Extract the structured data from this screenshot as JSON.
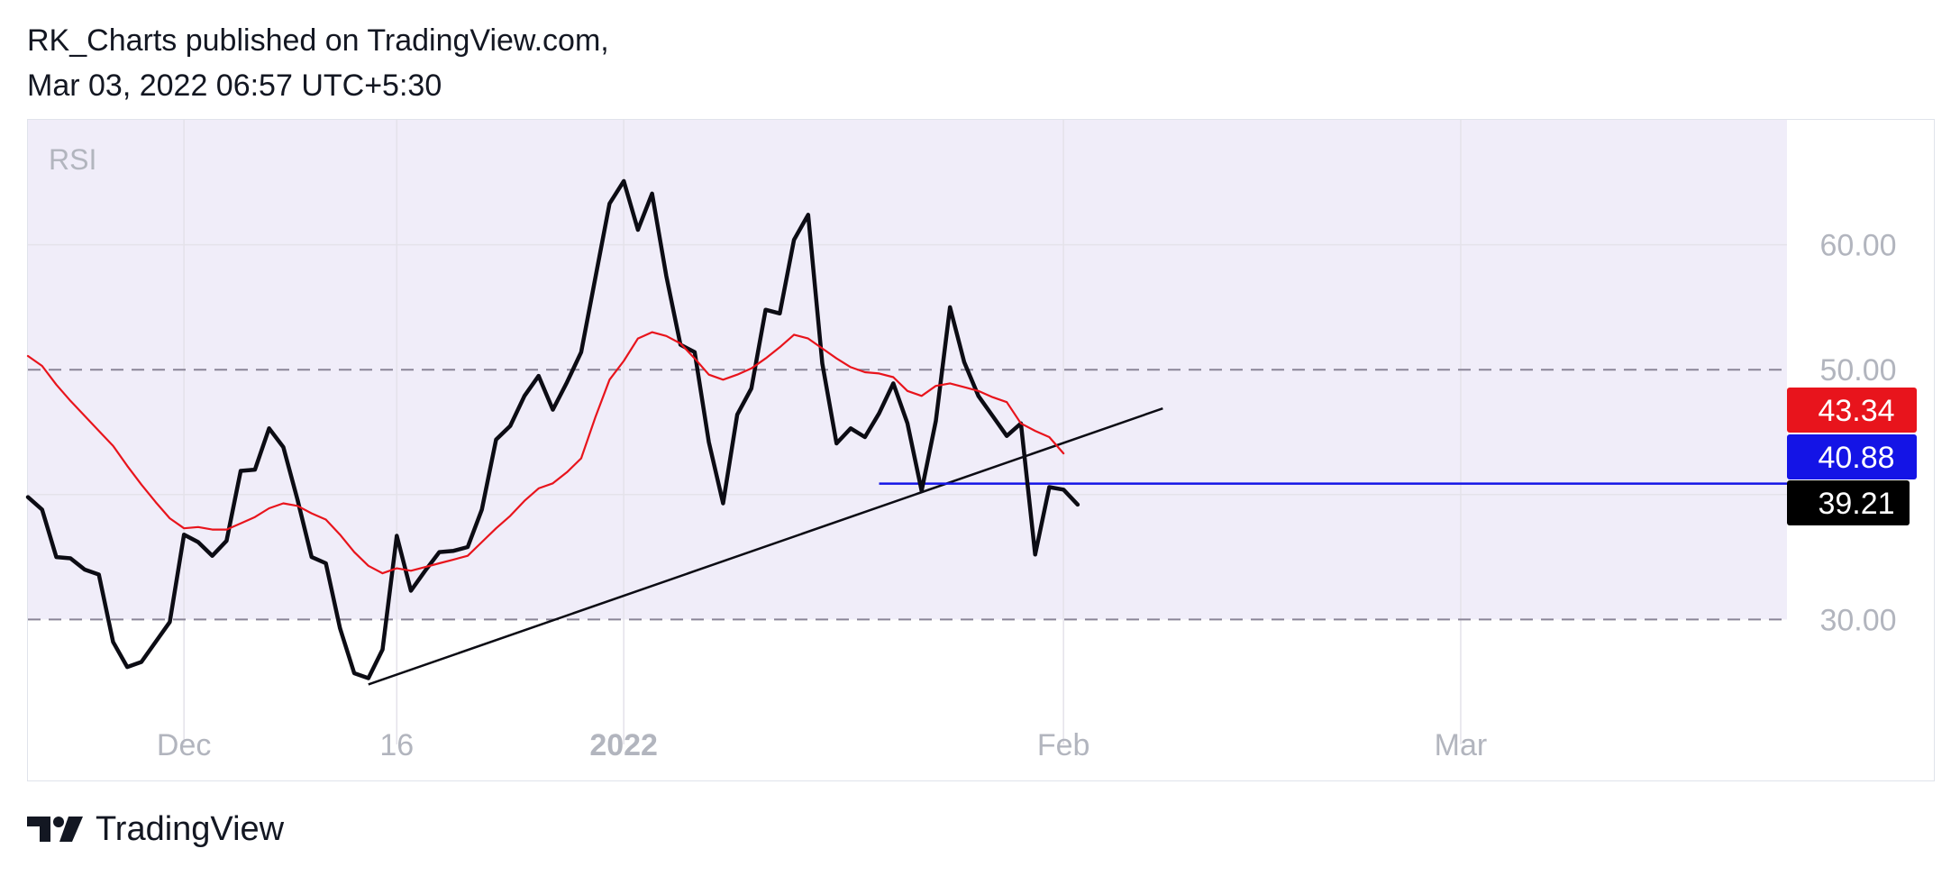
{
  "header": {
    "line1": "RK_Charts published on TradingView.com,",
    "line2": "Mar 03, 2022 06:57 UTC+5:30"
  },
  "footer": {
    "brand": "TradingView",
    "logo_icon": "tradingview-logo-icon"
  },
  "colors": {
    "band_fill": "#f0edf9",
    "rsi": "#0c0c14",
    "rsi_ma": "#e8141c",
    "trendline": "#0c0c14",
    "support_line": "#1414e6",
    "dashed": "#8a8597",
    "tick_text": "#b2b5be",
    "grid": "#e4e2ea"
  },
  "chart_data": {
    "type": "line",
    "title": "RSI",
    "xlabel": "",
    "ylabel": "",
    "x_ticks": [
      "Dec",
      "16",
      "2022",
      "Feb",
      "Mar"
    ],
    "x_tick_dates": [
      "2021-12-01",
      "2021-12-16",
      "2022-01-01",
      "2022-02-01",
      "2022-03-01"
    ],
    "y_ticks": [
      "60.00",
      "50.00",
      "30.00"
    ],
    "ylim": [
      20,
      70
    ],
    "xlim": [
      "2021-11-20",
      "2022-03-24"
    ],
    "band": [
      30,
      50
    ],
    "dashed_levels": [
      50,
      30
    ],
    "grid": true,
    "series": [
      {
        "role": "rsi",
        "last_value": "39.21",
        "points": [
          [
            "2021-11-20",
            39.8
          ],
          [
            "2021-11-21",
            38.8
          ],
          [
            "2021-11-22",
            35.0
          ],
          [
            "2021-11-23",
            34.9
          ],
          [
            "2021-11-24",
            34.0
          ],
          [
            "2021-11-25",
            33.6
          ],
          [
            "2021-11-26",
            28.2
          ],
          [
            "2021-11-27",
            26.2
          ],
          [
            "2021-11-28",
            26.6
          ],
          [
            "2021-11-30",
            29.8
          ],
          [
            "2021-12-01",
            36.8
          ],
          [
            "2021-12-02",
            36.2
          ],
          [
            "2021-12-03",
            35.1
          ],
          [
            "2021-12-04",
            36.3
          ],
          [
            "2021-12-05",
            41.9
          ],
          [
            "2021-12-06",
            42.0
          ],
          [
            "2021-12-07",
            45.3
          ],
          [
            "2021-12-08",
            43.8
          ],
          [
            "2021-12-09",
            39.6
          ],
          [
            "2021-12-10",
            35.0
          ],
          [
            "2021-12-11",
            34.5
          ],
          [
            "2021-12-12",
            29.3
          ],
          [
            "2021-12-13",
            25.7
          ],
          [
            "2021-12-14",
            25.3
          ],
          [
            "2021-12-15",
            27.6
          ],
          [
            "2021-12-16",
            36.7
          ],
          [
            "2021-12-17",
            32.3
          ],
          [
            "2021-12-18",
            33.9
          ],
          [
            "2021-12-19",
            35.4
          ],
          [
            "2021-12-20",
            35.5
          ],
          [
            "2021-12-21",
            35.8
          ],
          [
            "2021-12-22",
            38.8
          ],
          [
            "2021-12-23",
            44.4
          ],
          [
            "2021-12-24",
            45.5
          ],
          [
            "2021-12-25",
            47.9
          ],
          [
            "2021-12-26",
            49.5
          ],
          [
            "2021-12-27",
            46.8
          ],
          [
            "2021-12-28",
            49.0
          ],
          [
            "2021-12-29",
            51.4
          ],
          [
            "2021-12-31",
            63.3
          ],
          [
            "2022-01-01",
            65.1
          ],
          [
            "2022-01-02",
            61.2
          ],
          [
            "2022-01-03",
            64.1
          ],
          [
            "2022-01-04",
            57.5
          ],
          [
            "2022-01-05",
            52.0
          ],
          [
            "2022-01-06",
            51.4
          ],
          [
            "2022-01-07",
            44.2
          ],
          [
            "2022-01-08",
            39.3
          ],
          [
            "2022-01-09",
            46.4
          ],
          [
            "2022-01-10",
            48.5
          ],
          [
            "2022-01-11",
            54.8
          ],
          [
            "2022-01-12",
            54.5
          ],
          [
            "2022-01-13",
            60.4
          ],
          [
            "2022-01-14",
            62.4
          ],
          [
            "2022-01-15",
            50.5
          ],
          [
            "2022-01-16",
            44.1
          ],
          [
            "2022-01-17",
            45.3
          ],
          [
            "2022-01-18",
            44.6
          ],
          [
            "2022-01-19",
            46.5
          ],
          [
            "2022-01-20",
            48.9
          ],
          [
            "2022-01-21",
            45.7
          ],
          [
            "2022-01-22",
            40.3
          ],
          [
            "2022-01-23",
            45.9
          ],
          [
            "2022-01-24",
            55.0
          ],
          [
            "2022-01-25",
            50.6
          ],
          [
            "2022-01-26",
            47.9
          ],
          [
            "2022-01-27",
            46.3
          ],
          [
            "2022-01-28",
            44.7
          ],
          [
            "2022-01-29",
            45.7
          ],
          [
            "2022-01-30",
            35.2
          ],
          [
            "2022-01-31",
            40.6
          ],
          [
            "2022-02-01",
            40.4
          ],
          [
            "2022-02-02",
            39.2
          ]
        ]
      },
      {
        "role": "rsi_ma",
        "last_value": "43.34",
        "points": [
          [
            "2021-11-20",
            51.1
          ],
          [
            "2021-11-21",
            50.3
          ],
          [
            "2021-11-22",
            48.8
          ],
          [
            "2021-11-23",
            47.5
          ],
          [
            "2021-11-24",
            46.3
          ],
          [
            "2021-11-25",
            45.1
          ],
          [
            "2021-11-26",
            43.9
          ],
          [
            "2021-11-27",
            42.3
          ],
          [
            "2021-11-28",
            40.8
          ],
          [
            "2021-11-29",
            39.4
          ],
          [
            "2021-11-30",
            38.1
          ],
          [
            "2021-12-01",
            37.3
          ],
          [
            "2021-12-02",
            37.4
          ],
          [
            "2021-12-03",
            37.2
          ],
          [
            "2021-12-04",
            37.2
          ],
          [
            "2021-12-05",
            37.7
          ],
          [
            "2021-12-06",
            38.2
          ],
          [
            "2021-12-07",
            38.9
          ],
          [
            "2021-12-08",
            39.3
          ],
          [
            "2021-12-09",
            39.1
          ],
          [
            "2021-12-10",
            38.5
          ],
          [
            "2021-12-11",
            38.0
          ],
          [
            "2021-12-12",
            36.8
          ],
          [
            "2021-12-13",
            35.4
          ],
          [
            "2021-12-14",
            34.3
          ],
          [
            "2021-12-15",
            33.7
          ],
          [
            "2021-12-16",
            34.1
          ],
          [
            "2021-12-17",
            33.9
          ],
          [
            "2021-12-18",
            34.2
          ],
          [
            "2021-12-19",
            34.5
          ],
          [
            "2021-12-20",
            34.8
          ],
          [
            "2021-12-21",
            35.1
          ],
          [
            "2021-12-22",
            36.2
          ],
          [
            "2021-12-23",
            37.3
          ],
          [
            "2021-12-24",
            38.3
          ],
          [
            "2021-12-25",
            39.5
          ],
          [
            "2021-12-26",
            40.5
          ],
          [
            "2021-12-27",
            40.9
          ],
          [
            "2021-12-28",
            41.8
          ],
          [
            "2021-12-29",
            42.9
          ],
          [
            "2021-12-30",
            46.2
          ],
          [
            "2021-12-31",
            49.2
          ],
          [
            "2022-01-01",
            50.7
          ],
          [
            "2022-01-02",
            52.5
          ],
          [
            "2022-01-03",
            53.0
          ],
          [
            "2022-01-04",
            52.7
          ],
          [
            "2022-01-05",
            52.1
          ],
          [
            "2022-01-06",
            50.9
          ],
          [
            "2022-01-07",
            49.6
          ],
          [
            "2022-01-08",
            49.2
          ],
          [
            "2022-01-09",
            49.6
          ],
          [
            "2022-01-10",
            50.1
          ],
          [
            "2022-01-11",
            50.9
          ],
          [
            "2022-01-12",
            51.8
          ],
          [
            "2022-01-13",
            52.8
          ],
          [
            "2022-01-14",
            52.5
          ],
          [
            "2022-01-15",
            51.7
          ],
          [
            "2022-01-16",
            50.9
          ],
          [
            "2022-01-17",
            50.2
          ],
          [
            "2022-01-18",
            49.8
          ],
          [
            "2022-01-19",
            49.7
          ],
          [
            "2022-01-20",
            49.4
          ],
          [
            "2022-01-21",
            48.3
          ],
          [
            "2022-01-22",
            47.9
          ],
          [
            "2022-01-23",
            48.7
          ],
          [
            "2022-01-24",
            48.9
          ],
          [
            "2022-01-25",
            48.6
          ],
          [
            "2022-01-26",
            48.3
          ],
          [
            "2022-01-27",
            47.8
          ],
          [
            "2022-01-28",
            47.4
          ],
          [
            "2022-01-29",
            45.7
          ],
          [
            "2022-01-30",
            45.1
          ],
          [
            "2022-01-31",
            44.6
          ],
          [
            "2022-02-01",
            43.3
          ]
        ]
      }
    ],
    "trendline": {
      "from": [
        "2021-12-14",
        24.8
      ],
      "to": [
        "2022-02-08",
        46.9
      ]
    },
    "support_line": {
      "from": [
        "2022-01-19",
        40.88
      ],
      "to": [
        "2022-03-24",
        40.88
      ]
    },
    "price_labels": [
      {
        "value": 43.34,
        "text": "43.34",
        "role": "rsi_ma"
      },
      {
        "value": 40.88,
        "text": "40.88",
        "role": "support_line"
      },
      {
        "value": 39.21,
        "text": "39.21",
        "role": "rsi"
      }
    ]
  }
}
